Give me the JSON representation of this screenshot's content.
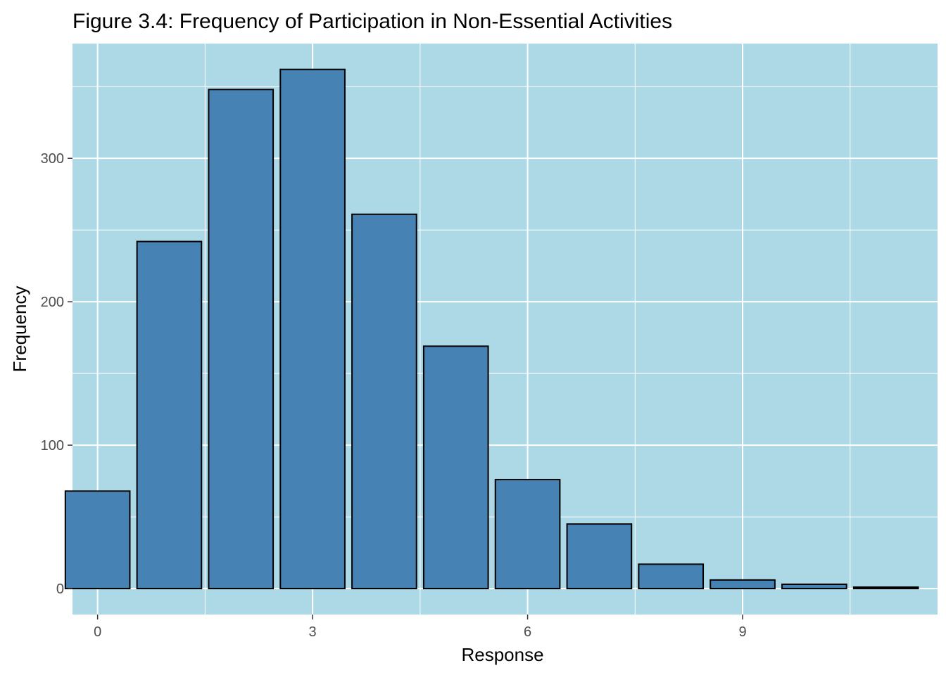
{
  "chart_data": {
    "type": "bar",
    "title": "Figure 3.4: Frequency of Participation in Non-Essential Activities",
    "xlabel": "Response",
    "ylabel": "Frequency",
    "x": [
      0,
      1,
      2,
      3,
      4,
      5,
      6,
      7,
      8,
      9,
      10,
      11
    ],
    "values": [
      68,
      242,
      348,
      362,
      261,
      169,
      76,
      45,
      17,
      6,
      3,
      1
    ],
    "xlim": [
      -0.35,
      11.72
    ],
    "ylim": [
      -18.1,
      380
    ],
    "x_ticks": [
      0,
      3,
      6,
      9,
      12
    ],
    "y_ticks": [
      0,
      100,
      200,
      300
    ],
    "grid": true,
    "colors": {
      "panel_background": "#add8e6",
      "grid_line": "#ffffff",
      "bar_fill": "#4682b4",
      "bar_outline": "#000000",
      "tick_text": "#4d4d4d"
    }
  }
}
